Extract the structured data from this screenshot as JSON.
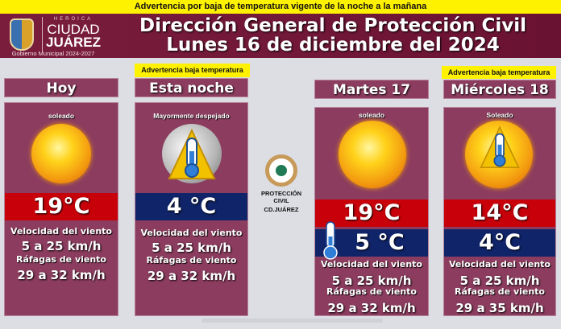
{
  "banner": "Advertencia por baja de temperatura vigente de la noche a la mañana",
  "logo": {
    "heroica": "HEROICA",
    "ciudad": "CIUDAD",
    "juarez": "JUÁREZ",
    "gobierno": "Gobierno Municipal 2024-2027"
  },
  "header": {
    "line1": "Dirección General de Protección Civil",
    "line2": "Lunes 16 de diciembre del 2024"
  },
  "center_logo": {
    "line1": "PROTECCIÓN CIVIL",
    "line2": "CD.JUÁREZ"
  },
  "days": [
    {
      "title": "Hoy",
      "warning": "",
      "condition": "soleado",
      "icon": "sun-icon",
      "high": "19°C",
      "low": "",
      "wind_label": "Velocidad del viento",
      "wind": "5 a 25 km/h",
      "gust_label": "Ráfagas de viento",
      "gust": "29 a 32 km/h"
    },
    {
      "title": "Esta noche",
      "warning": "Advertencia baja temperatura",
      "condition": "Mayormente despejado",
      "icon": "moon-cold-thermometer-icon",
      "high": "",
      "low": "4 °C",
      "wind_label": "Velocidad del viento",
      "wind": "5 a 25 km/h",
      "gust_label": "Ráfagas de viento",
      "gust": "29 a 32 km/h"
    },
    {
      "title": "Martes 17",
      "warning": "",
      "condition": "soleado",
      "icon": "sun-icon",
      "high": "19°C",
      "low": "5 °C",
      "wind_label": "Velocidad del viento",
      "wind": "5 a 25 km/h",
      "gust_label": "Ráfagas de viento",
      "gust": "29 a 32 km/h"
    },
    {
      "title": "Miércoles 18",
      "warning": "Advertencia baja temperatura",
      "condition": "Soleado",
      "icon": "sun-cold-thermometer-icon",
      "high": "14°C",
      "low": "4°C",
      "wind_label": "Velocidad del viento",
      "wind": "5 a 25 km/h",
      "gust_label": "Ráfagas de viento",
      "gust": "29 a 35 km/h"
    }
  ],
  "colors": {
    "maroon": "#8c3d5f",
    "high": "#c8000a",
    "low": "#10246a",
    "warning": "#fff200"
  }
}
